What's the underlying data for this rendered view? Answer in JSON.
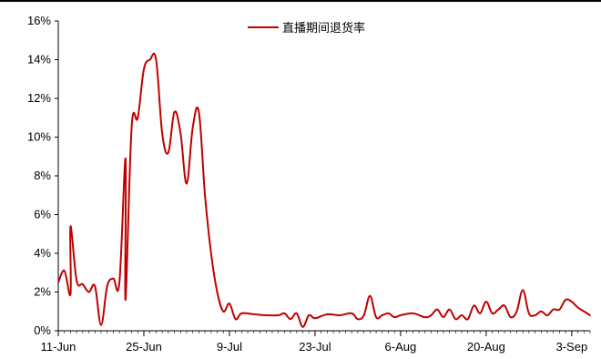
{
  "chart_data": {
    "type": "line",
    "title": "",
    "xlabel": "",
    "ylabel": "",
    "ylim": [
      0,
      16
    ],
    "y_tick_values": [
      0,
      2,
      4,
      6,
      8,
      10,
      12,
      14,
      16
    ],
    "y_tick_labels": [
      "0%",
      "2%",
      "4%",
      "6%",
      "8%",
      "10%",
      "12%",
      "14%",
      "16%"
    ],
    "x_range": [
      "2020-06-11",
      "2020-09-06"
    ],
    "x_tick_dates": [
      "2020-06-11",
      "2020-06-25",
      "2020-07-09",
      "2020-07-23",
      "2020-08-06",
      "2020-08-20",
      "2020-09-03"
    ],
    "x_tick_labels": [
      "11-Jun",
      "25-Jun",
      "9-Jul",
      "23-Jul",
      "6-Aug",
      "20-Aug",
      "3-Sep"
    ],
    "legend": {
      "position": "top-center"
    },
    "grid": false,
    "series": [
      {
        "name": "直播期间退货率",
        "color": "#c00000",
        "points": [
          [
            "2020-06-11",
            2.5
          ],
          [
            "2020-06-12",
            3.1
          ],
          [
            "2020-06-13",
            1.9
          ],
          [
            "2020-06-13",
            5.4
          ],
          [
            "2020-06-14",
            2.6
          ],
          [
            "2020-06-15",
            2.4
          ],
          [
            "2020-06-16",
            2.0
          ],
          [
            "2020-06-17",
            2.3
          ],
          [
            "2020-06-18",
            0.3
          ],
          [
            "2020-06-19",
            2.3
          ],
          [
            "2020-06-20",
            2.7
          ],
          [
            "2020-06-21",
            2.5
          ],
          [
            "2020-06-22",
            8.9
          ],
          [
            "2020-06-22",
            1.6
          ],
          [
            "2020-06-23",
            10.5
          ],
          [
            "2020-06-24",
            11.0
          ],
          [
            "2020-06-25",
            13.5
          ],
          [
            "2020-06-26",
            14.0
          ],
          [
            "2020-06-27",
            14.0
          ],
          [
            "2020-06-28",
            10.2
          ],
          [
            "2020-06-29",
            9.2
          ],
          [
            "2020-06-30",
            11.3
          ],
          [
            "2020-07-01",
            10.2
          ],
          [
            "2020-07-02",
            7.6
          ],
          [
            "2020-07-03",
            10.5
          ],
          [
            "2020-07-04",
            11.3
          ],
          [
            "2020-07-05",
            7.0
          ],
          [
            "2020-07-06",
            4.0
          ],
          [
            "2020-07-07",
            2.0
          ],
          [
            "2020-07-08",
            1.0
          ],
          [
            "2020-07-09",
            1.4
          ],
          [
            "2020-07-10",
            0.6
          ],
          [
            "2020-07-11",
            0.9
          ],
          [
            "2020-07-13",
            0.85
          ],
          [
            "2020-07-15",
            0.8
          ],
          [
            "2020-07-17",
            0.8
          ],
          [
            "2020-07-18",
            0.9
          ],
          [
            "2020-07-19",
            0.6
          ],
          [
            "2020-07-20",
            0.9
          ],
          [
            "2020-07-21",
            0.2
          ],
          [
            "2020-07-22",
            0.8
          ],
          [
            "2020-07-23",
            0.65
          ],
          [
            "2020-07-25",
            0.85
          ],
          [
            "2020-07-27",
            0.8
          ],
          [
            "2020-07-29",
            0.9
          ],
          [
            "2020-07-30",
            0.6
          ],
          [
            "2020-07-31",
            0.8
          ],
          [
            "2020-08-01",
            1.8
          ],
          [
            "2020-08-02",
            0.7
          ],
          [
            "2020-08-03",
            0.8
          ],
          [
            "2020-08-04",
            0.9
          ],
          [
            "2020-08-05",
            0.7
          ],
          [
            "2020-08-06",
            0.8
          ],
          [
            "2020-08-08",
            0.9
          ],
          [
            "2020-08-10",
            0.7
          ],
          [
            "2020-08-11",
            0.8
          ],
          [
            "2020-08-12",
            1.1
          ],
          [
            "2020-08-13",
            0.7
          ],
          [
            "2020-08-14",
            1.1
          ],
          [
            "2020-08-15",
            0.6
          ],
          [
            "2020-08-16",
            0.8
          ],
          [
            "2020-08-17",
            0.6
          ],
          [
            "2020-08-18",
            1.3
          ],
          [
            "2020-08-19",
            0.9
          ],
          [
            "2020-08-20",
            1.5
          ],
          [
            "2020-08-21",
            0.9
          ],
          [
            "2020-08-22",
            1.1
          ],
          [
            "2020-08-23",
            1.3
          ],
          [
            "2020-08-24",
            0.7
          ],
          [
            "2020-08-25",
            1.0
          ],
          [
            "2020-08-26",
            2.1
          ],
          [
            "2020-08-27",
            0.9
          ],
          [
            "2020-08-28",
            0.8
          ],
          [
            "2020-08-29",
            1.0
          ],
          [
            "2020-08-30",
            0.8
          ],
          [
            "2020-08-31",
            1.1
          ],
          [
            "2020-09-01",
            1.1
          ],
          [
            "2020-09-02",
            1.6
          ],
          [
            "2020-09-03",
            1.5
          ],
          [
            "2020-09-04",
            1.2
          ],
          [
            "2020-09-05",
            1.0
          ],
          [
            "2020-09-06",
            0.8
          ]
        ]
      }
    ]
  }
}
